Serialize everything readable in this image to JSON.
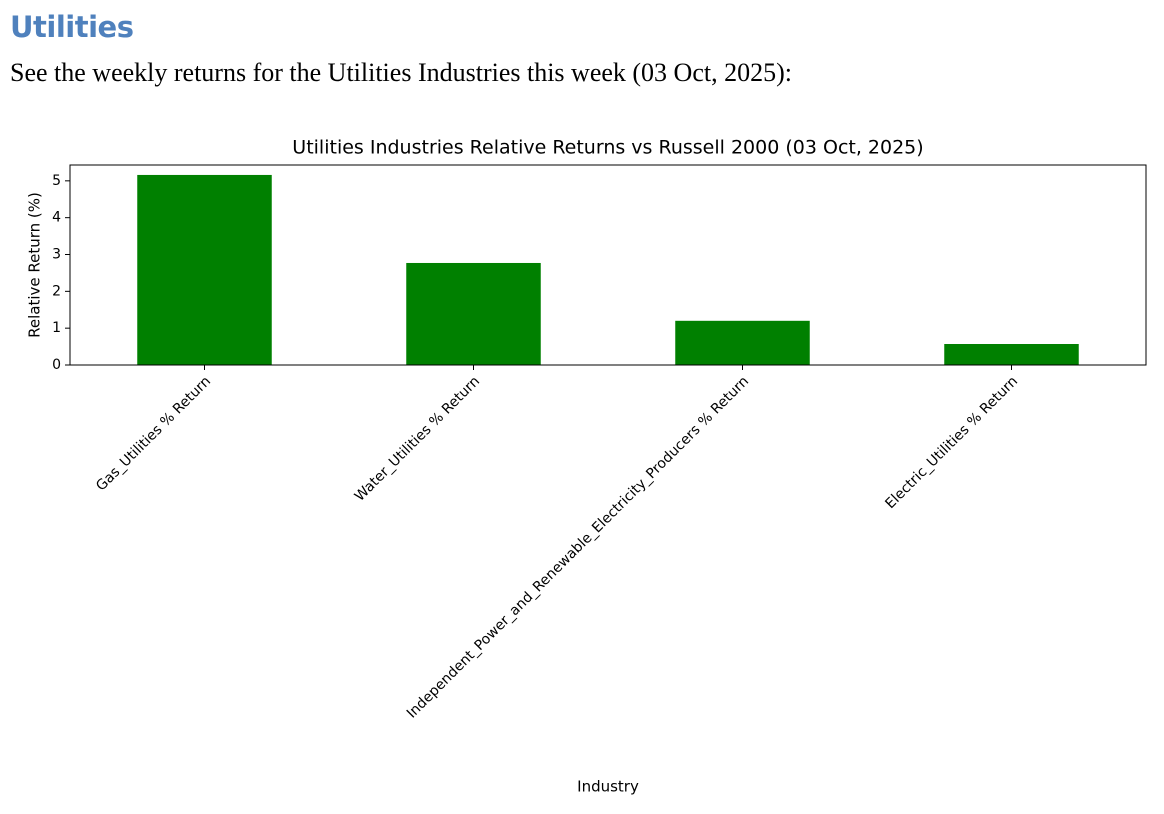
{
  "heading": "Utilities",
  "intro": "See the weekly returns for the Utilities Industries this week (03 Oct, 2025):",
  "chart_data": {
    "type": "bar",
    "title": "Utilities Industries Relative Returns vs Russell 2000 (03 Oct, 2025)",
    "x_label": "Industry",
    "y_label": "Relative Return (%)",
    "categories": [
      "Gas_Utilities % Return",
      "Water_Utilities % Return",
      "Independent_Power_and_Renewable_Electricity_Producers % Return",
      "Electric_Utilities % Return"
    ],
    "values": [
      5.16,
      2.77,
      1.2,
      0.57
    ],
    "color": "#008000",
    "ylim": [
      0,
      5.43
    ],
    "yticks": [
      0,
      1,
      2,
      3,
      4,
      5
    ],
    "grid": false
  }
}
